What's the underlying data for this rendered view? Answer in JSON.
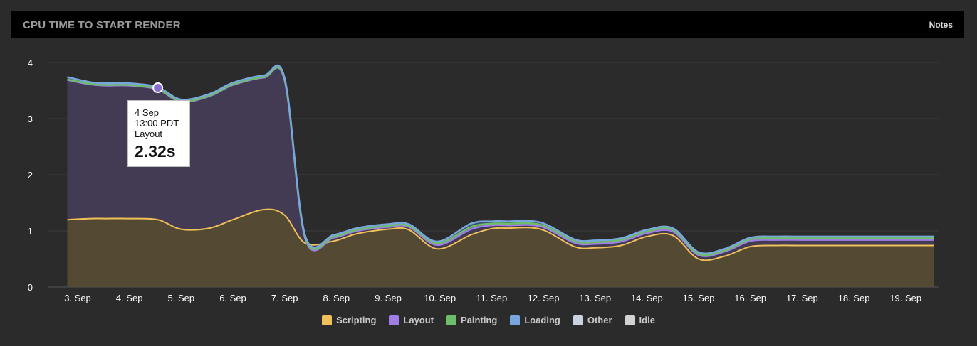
{
  "header": {
    "title": "CPU TIME TO START RENDER",
    "notes_label": "Notes"
  },
  "chart_data": {
    "type": "area",
    "title": "CPU TIME TO START RENDER",
    "xlabel": "",
    "ylabel": "",
    "ylim": [
      0,
      4
    ],
    "y_ticks": [
      "0",
      "1",
      "2",
      "3",
      "4"
    ],
    "categories": [
      "3. Sep",
      "4. Sep",
      "5. Sep",
      "6. Sep",
      "7. Sep",
      "8. Sep",
      "9. Sep",
      "10. Sep",
      "11. Sep",
      "12. Sep",
      "13. Sep",
      "14. Sep",
      "15. Sep",
      "16. Sep",
      "17. Sep",
      "18. Sep",
      "19. Sep"
    ],
    "stacked": true,
    "grid": true,
    "legend_position": "bottom",
    "x": [
      -0.2,
      0.25,
      0.55,
      1.0,
      1.55,
      2.0,
      2.55,
      3.0,
      3.6,
      4.0,
      4.4,
      4.95,
      5.4,
      6.0,
      6.4,
      6.95,
      7.6,
      8.0,
      8.3,
      8.95,
      9.6,
      10.0,
      10.5,
      11.0,
      11.5,
      12.0,
      12.5,
      13.0,
      13.5,
      14.0,
      14.4,
      14.95,
      15.5,
      16.0,
      16.55
    ],
    "series": [
      {
        "name": "Scripting",
        "color": "#f0c05a",
        "values": [
          1.2,
          1.22,
          1.22,
          1.22,
          1.2,
          1.03,
          1.05,
          1.2,
          1.38,
          1.28,
          0.78,
          0.82,
          0.95,
          1.03,
          1.02,
          0.68,
          0.93,
          1.04,
          1.05,
          1.03,
          0.72,
          0.7,
          0.74,
          0.9,
          0.92,
          0.5,
          0.55,
          0.72,
          0.74,
          0.74,
          0.74,
          0.74,
          0.74,
          0.74,
          0.74
        ]
      },
      {
        "name": "Layout",
        "color": "#a07ee8",
        "values": [
          2.49,
          2.39,
          2.37,
          2.37,
          2.32,
          2.27,
          2.35,
          2.4,
          2.35,
          2.4,
          0.08,
          0.06,
          0.05,
          0.04,
          0.05,
          0.07,
          0.1,
          0.06,
          0.05,
          0.05,
          0.07,
          0.07,
          0.07,
          0.06,
          0.07,
          0.07,
          0.08,
          0.1,
          0.1,
          0.1,
          0.1,
          0.1,
          0.1,
          0.1,
          0.1
        ]
      },
      {
        "name": "Painting",
        "color": "#6dbe68",
        "values": [
          0.01,
          0.01,
          0.01,
          0.01,
          0.01,
          0.01,
          0.01,
          0.01,
          0.01,
          0.01,
          0.02,
          0.02,
          0.02,
          0.02,
          0.02,
          0.03,
          0.04,
          0.03,
          0.03,
          0.03,
          0.03,
          0.03,
          0.03,
          0.03,
          0.03,
          0.02,
          0.02,
          0.03,
          0.03,
          0.03,
          0.03,
          0.03,
          0.03,
          0.03,
          0.03
        ]
      },
      {
        "name": "Loading",
        "color": "#78a6de",
        "values": [
          0.04,
          0.03,
          0.03,
          0.03,
          0.03,
          0.03,
          0.03,
          0.03,
          0.03,
          0.03,
          0.03,
          0.03,
          0.03,
          0.03,
          0.03,
          0.03,
          0.06,
          0.04,
          0.04,
          0.04,
          0.03,
          0.03,
          0.03,
          0.03,
          0.03,
          0.03,
          0.03,
          0.03,
          0.03,
          0.03,
          0.03,
          0.03,
          0.03,
          0.03,
          0.03
        ]
      },
      {
        "name": "Other",
        "color": "#c8d3de",
        "values": [
          0,
          0,
          0,
          0,
          0,
          0,
          0,
          0,
          0,
          0,
          0,
          0,
          0,
          0,
          0,
          0,
          0,
          0,
          0,
          0,
          0,
          0,
          0,
          0,
          0,
          0,
          0,
          0,
          0,
          0,
          0,
          0,
          0,
          0,
          0
        ]
      },
      {
        "name": "Idle",
        "color": "#d2d2d2",
        "values": [
          0,
          0,
          0,
          0,
          0,
          0,
          0,
          0,
          0,
          0,
          0,
          0,
          0,
          0,
          0,
          0,
          0,
          0,
          0,
          0,
          0,
          0,
          0,
          0,
          0,
          0,
          0,
          0,
          0,
          0,
          0,
          0,
          0,
          0,
          0
        ]
      }
    ],
    "tooltip": {
      "date": "4 Sep",
      "time": "13:00 PDT",
      "series": "Layout",
      "value": "2.32s",
      "x": 1.55,
      "y": 3.55
    }
  },
  "legend": {
    "items": [
      {
        "label": "Scripting",
        "color": "#f0c05a"
      },
      {
        "label": "Layout",
        "color": "#a07ee8"
      },
      {
        "label": "Painting",
        "color": "#6dbe68"
      },
      {
        "label": "Loading",
        "color": "#78a6de"
      },
      {
        "label": "Other",
        "color": "#c8d3de"
      },
      {
        "label": "Idle",
        "color": "#d2d2d2"
      }
    ]
  }
}
